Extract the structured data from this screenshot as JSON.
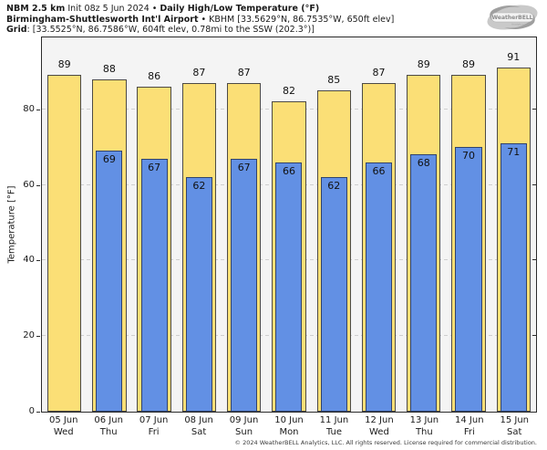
{
  "header": {
    "line1_bold1": "NBM 2.5 km",
    "line1_regular": " Init 08z 5 Jun 2024 • ",
    "line1_bold2": "Daily High/Low Temperature (°F)",
    "line2_bold": "Birmingham-Shuttlesworth Int'l Airport",
    "line2_regular": " • KBHM [33.5629°N, 86.7535°W, 650ft elev]",
    "line3_bold": "Grid",
    "line3_regular": ": [33.5525°N, 86.7586°W, 604ft elev, 0.78mi to the SSW (202.3°)]"
  },
  "logo": {
    "brand": "WeatherBELL",
    "sub": "Analytics LLC"
  },
  "chart_data": {
    "type": "bar",
    "title": "NBM 2.5 km Init 08z 5 Jun 2024 • Daily High/Low Temperature (°F)",
    "subtitle": "Birmingham-Shuttlesworth Int'l Airport • KBHM [33.5629°N, 86.7535°W, 650ft elev]",
    "ylabel": "Temperature [°F]",
    "ylim": [
      0,
      99
    ],
    "yticks": [
      0,
      20,
      40,
      60,
      80
    ],
    "grid": "horizontal dashed at 20/40/60/80",
    "legend": "none",
    "categories": [
      "05 Jun",
      "06 Jun",
      "07 Jun",
      "08 Jun",
      "09 Jun",
      "10 Jun",
      "11 Jun",
      "12 Jun",
      "13 Jun",
      "14 Jun",
      "15 Jun"
    ],
    "weekdays": [
      "Wed",
      "Thu",
      "Fri",
      "Sat",
      "Sun",
      "Mon",
      "Tue",
      "Wed",
      "Thu",
      "Fri",
      "Sat"
    ],
    "series": [
      {
        "name": "Daily High",
        "values": [
          89,
          88,
          86,
          87,
          87,
          82,
          85,
          87,
          89,
          89,
          91
        ]
      },
      {
        "name": "Daily Low",
        "values": [
          null,
          69,
          67,
          62,
          67,
          66,
          62,
          66,
          68,
          70,
          71
        ]
      }
    ]
  },
  "colors": {
    "high_fill": "#fbdf76",
    "high_border": "#4c4a45",
    "low_fill": "#6290e4",
    "low_border": "#31436b",
    "plot_bg": "#f4f4f4",
    "grid": "#cfcfcf",
    "spine": "#2b2b2b"
  },
  "footer": {
    "copyright": "© 2024 WeatherBELL Analytics, LLC. All rights reserved. License required for commercial distribution."
  }
}
